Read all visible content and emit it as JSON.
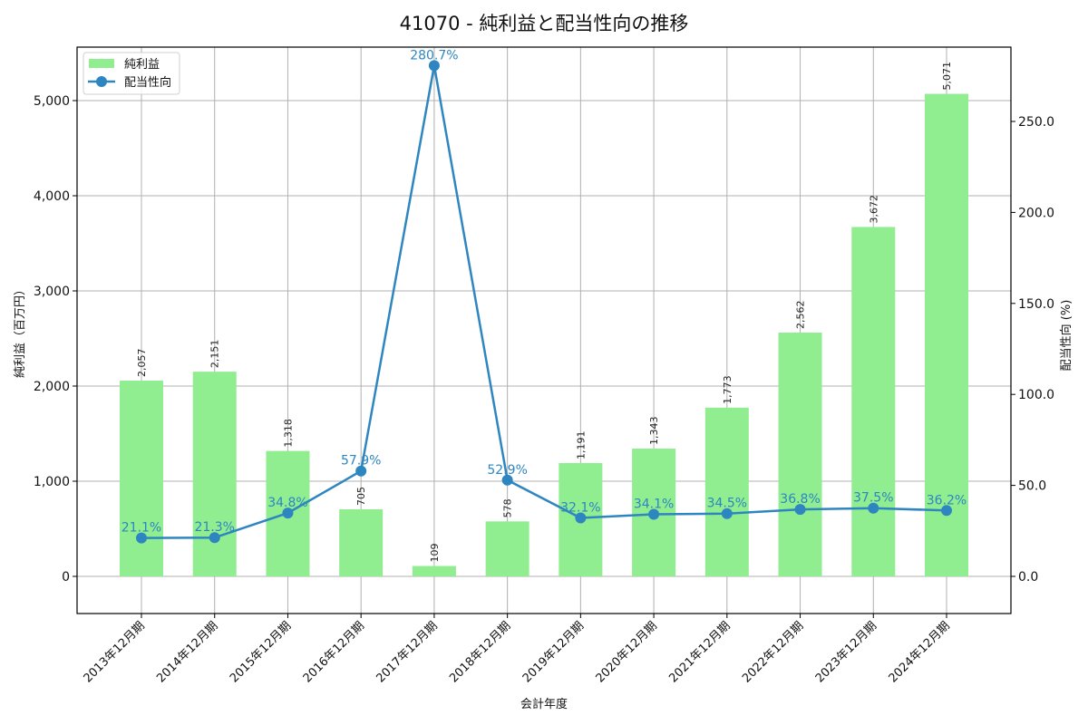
{
  "chart_data": {
    "type": "bar+line",
    "title": "41070 - 純利益と配当性向の推移",
    "xlabel": "会計年度",
    "ylabel_left": "純利益（百万円）",
    "ylabel_right": "配当性向 (%)",
    "categories": [
      "2013年12月期",
      "2014年12月期",
      "2015年12月期",
      "2016年12月期",
      "2017年12月期",
      "2018年12月期",
      "2019年12月期",
      "2020年12月期",
      "2021年12月期",
      "2022年12月期",
      "2023年12月期",
      "2024年12月期"
    ],
    "series": [
      {
        "name": "純利益",
        "type": "bar",
        "axis": "left",
        "color": "#90ee90",
        "values": [
          2057,
          2151,
          1318,
          705,
          109,
          578,
          1191,
          1343,
          1773,
          2562,
          3672,
          5071
        ],
        "labels": [
          "2,057",
          "2,151",
          "1,318",
          "705",
          "109",
          "578",
          "1,191",
          "1,343",
          "1,773",
          "2,562",
          "3,672",
          "5,071"
        ]
      },
      {
        "name": "配当性向",
        "type": "line",
        "axis": "right",
        "color": "#2e86c1",
        "values": [
          21.1,
          21.3,
          34.8,
          57.9,
          280.7,
          52.9,
          32.1,
          34.1,
          34.5,
          36.8,
          37.5,
          36.2
        ],
        "labels": [
          "21.1%",
          "21.3%",
          "34.8%",
          "57.9%",
          "280.7%",
          "52.9%",
          "32.1%",
          "34.1%",
          "34.5%",
          "36.8%",
          "37.5%",
          "36.2%"
        ]
      }
    ],
    "left_axis": {
      "ticks": [
        0,
        1000,
        2000,
        3000,
        4000,
        5000
      ],
      "tick_labels": [
        "0",
        "1,000",
        "2,000",
        "3,000",
        "4,000",
        "5,000"
      ],
      "ylim": [
        -390,
        5560
      ]
    },
    "right_axis": {
      "ticks": [
        0,
        50,
        100,
        150,
        200,
        250
      ],
      "tick_labels": [
        "0.0",
        "50.0",
        "100.0",
        "150.0",
        "200.0",
        "250.0"
      ],
      "ylim": [
        -20.4,
        290
      ]
    },
    "grid": true,
    "legend": {
      "position": "upper left",
      "entries": [
        "純利益",
        "配当性向"
      ]
    }
  }
}
